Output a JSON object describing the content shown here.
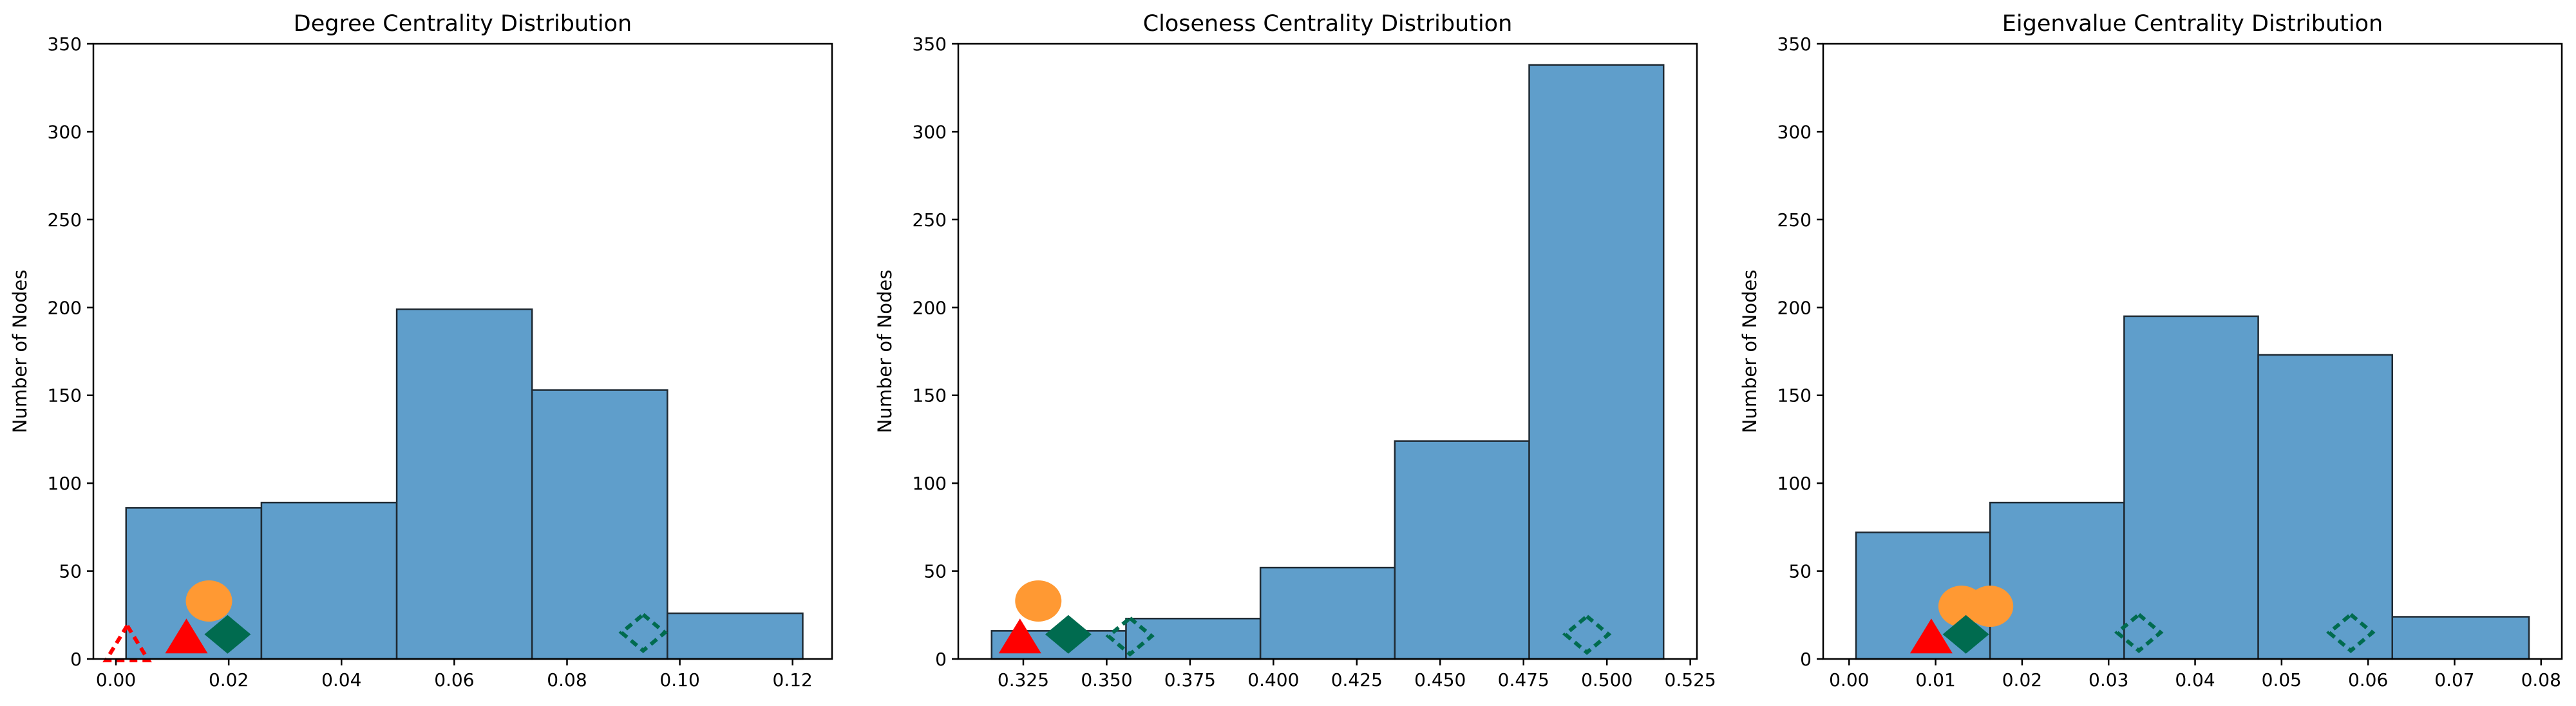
{
  "colors": {
    "bar_fill": "#5f9ecb",
    "bar_edge": "#1f2a33",
    "marker_red": "#ff0000",
    "marker_orange": "#ff9933",
    "marker_green": "#006b4f"
  },
  "chart_data": [
    {
      "type": "bar",
      "title": "Degree Centrality Distribution",
      "xlabel": "",
      "ylabel": "Number of Nodes",
      "xlim": [
        -0.004,
        0.127
      ],
      "ylim": [
        0,
        350
      ],
      "xticks": [
        0.0,
        0.02,
        0.04,
        0.06,
        0.08,
        0.1,
        0.12
      ],
      "xtick_labels": [
        "0.00",
        "0.02",
        "0.04",
        "0.06",
        "0.08",
        "0.10",
        "0.12"
      ],
      "yticks": [
        0,
        50,
        100,
        150,
        200,
        250,
        300,
        350
      ],
      "ytick_labels": [
        "0",
        "50",
        "100",
        "150",
        "200",
        "250",
        "300",
        "350"
      ],
      "bins": [
        [
          0.0018,
          0.0258
        ],
        [
          0.0258,
          0.0498
        ],
        [
          0.0498,
          0.0738
        ],
        [
          0.0738,
          0.0978
        ],
        [
          0.0978,
          0.1218
        ]
      ],
      "values": [
        86,
        89,
        199,
        153,
        26
      ],
      "markers": [
        {
          "shape": "triangle-outline",
          "color": "red",
          "x": 0.002,
          "y": 8
        },
        {
          "shape": "triangle",
          "color": "red",
          "x": 0.0125,
          "y": 12
        },
        {
          "shape": "circle",
          "color": "orange",
          "x": 0.0165,
          "y": 33
        },
        {
          "shape": "diamond",
          "color": "green",
          "x": 0.0198,
          "y": 14
        },
        {
          "shape": "diamond-outline",
          "color": "green",
          "x": 0.0935,
          "y": 15
        }
      ]
    },
    {
      "type": "bar",
      "title": "Closeness Centrality Distribution",
      "xlabel": "",
      "ylabel": "Number of Nodes",
      "xlim": [
        0.3055,
        0.527
      ],
      "ylim": [
        0,
        350
      ],
      "xticks": [
        0.325,
        0.35,
        0.375,
        0.4,
        0.425,
        0.45,
        0.475,
        0.5,
        0.525
      ],
      "xtick_labels": [
        "0.325",
        "0.350",
        "0.375",
        "0.400",
        "0.425",
        "0.450",
        "0.475",
        "0.500",
        "0.525"
      ],
      "yticks": [
        0,
        50,
        100,
        150,
        200,
        250,
        300,
        350
      ],
      "ytick_labels": [
        "0",
        "50",
        "100",
        "150",
        "200",
        "250",
        "300",
        "350"
      ],
      "bins": [
        [
          0.3155,
          0.3558
        ],
        [
          0.3558,
          0.3961
        ],
        [
          0.3961,
          0.4364
        ],
        [
          0.4364,
          0.4767
        ],
        [
          0.4767,
          0.517
        ]
      ],
      "values": [
        16,
        23,
        52,
        124,
        338
      ],
      "markers": [
        {
          "shape": "triangle",
          "color": "red",
          "x": 0.324,
          "y": 12
        },
        {
          "shape": "circle",
          "color": "orange",
          "x": 0.3295,
          "y": 33
        },
        {
          "shape": "diamond",
          "color": "green",
          "x": 0.3385,
          "y": 14
        },
        {
          "shape": "diamond-outline",
          "color": "green",
          "x": 0.357,
          "y": 13
        },
        {
          "shape": "diamond-outline",
          "color": "green",
          "x": 0.494,
          "y": 14
        }
      ]
    },
    {
      "type": "bar",
      "title": "Eigenvalue Centrality Distribution",
      "xlabel": "",
      "ylabel": "Number of Nodes",
      "xlim": [
        -0.003,
        0.0824
      ],
      "ylim": [
        0,
        350
      ],
      "xticks": [
        0.0,
        0.01,
        0.02,
        0.03,
        0.04,
        0.05,
        0.06,
        0.07,
        0.08
      ],
      "xtick_labels": [
        "0.00",
        "0.01",
        "0.02",
        "0.03",
        "0.04",
        "0.05",
        "0.06",
        "0.07",
        "0.08"
      ],
      "yticks": [
        0,
        50,
        100,
        150,
        200,
        250,
        300,
        350
      ],
      "ytick_labels": [
        "0",
        "50",
        "100",
        "150",
        "200",
        "250",
        "300",
        "350"
      ],
      "bins": [
        [
          0.0008,
          0.0163
        ],
        [
          0.0163,
          0.0318
        ],
        [
          0.0318,
          0.0473
        ],
        [
          0.0473,
          0.0628
        ],
        [
          0.0628,
          0.0786
        ]
      ],
      "values": [
        72,
        89,
        195,
        173,
        24
      ],
      "markers": [
        {
          "shape": "triangle",
          "color": "red",
          "x": 0.0095,
          "y": 12
        },
        {
          "shape": "circle",
          "color": "orange",
          "x": 0.013,
          "y": 30
        },
        {
          "shape": "circle",
          "color": "orange",
          "x": 0.0163,
          "y": 30
        },
        {
          "shape": "diamond",
          "color": "green",
          "x": 0.0135,
          "y": 14
        },
        {
          "shape": "diamond-outline",
          "color": "green",
          "x": 0.0335,
          "y": 15
        },
        {
          "shape": "diamond-outline",
          "color": "green",
          "x": 0.058,
          "y": 15
        }
      ]
    }
  ]
}
